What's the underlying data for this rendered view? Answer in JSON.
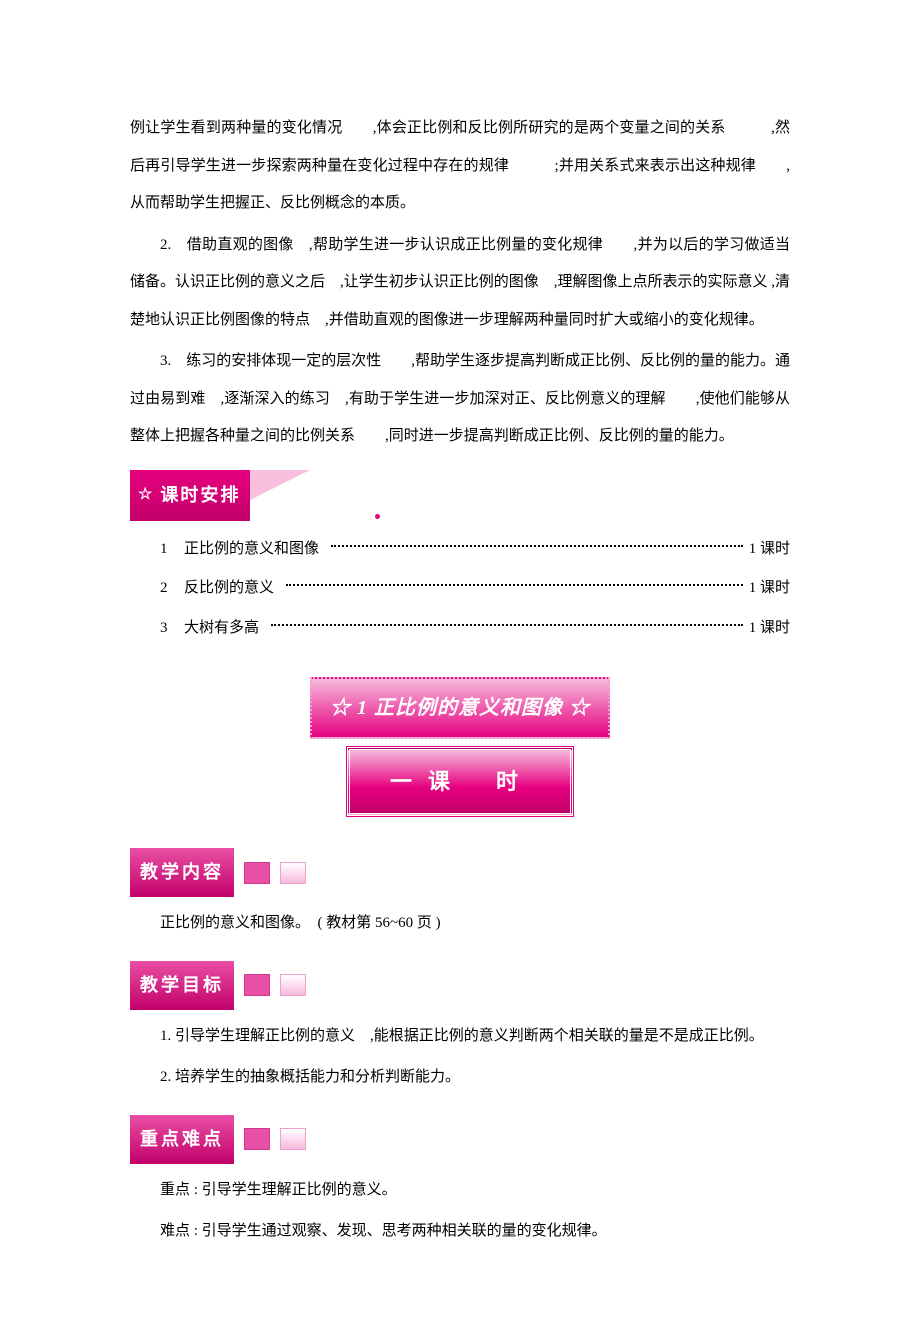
{
  "colors": {
    "magenta": "#e6007e",
    "magenta_dark": "#c2006b",
    "pink_light": "#f7b9dd",
    "pink_border": "#f59ecf",
    "text": "#000000",
    "bg": "#ffffff"
  },
  "typography": {
    "body_family": "SimSun",
    "body_size_pt": 11,
    "header_family": "SimHei",
    "kaiti_family": "KaiTi",
    "line_height": 2.5
  },
  "paragraphs": {
    "p1": "例让学生看到两种量的变化情况　　,体会正比例和反比例所研究的是两个变量之间的关系　　　,然后再引导学生进一步探索两种量在变化过程中存在的规律　　　;并用关系式来表示出这种规律　　,从而帮助学生把握正、反比例概念的本质。",
    "p2": "2.　借助直观的图像　,帮助学生进一步认识成正比例量的变化规律　　,并为以后的学习做适当储备。认识正比例的意义之后　,让学生初步认识正比例的图像　,理解图像上点所表示的实际意义 ,清楚地认识正比例图像的特点　,并借助直观的图像进一步理解两种量同时扩大或缩小的变化规律。",
    "p3": "3.　练习的安排体现一定的层次性　　,帮助学生逐步提高判断成正比例、反比例的量的能力。通过由易到难　,逐渐深入的练习　,有助于学生进一步加深对正、反比例意义的理解　　,使他们能够从整体上把握各种量之间的比例关系　　,同时进一步提高判断成正比例、反比例的量的能力。"
  },
  "schedule_header": {
    "star": "☆",
    "label": "课时安排"
  },
  "toc": [
    {
      "num": "1",
      "title": "正比例的意义和图像",
      "hours": "1 课时"
    },
    {
      "num": "2",
      "title": "反比例的意义",
      "hours": "1 课时"
    },
    {
      "num": "3",
      "title": "大树有多高",
      "hours": "1 课时"
    }
  ],
  "chapter_banner": {
    "prefix": "☆",
    "num": "1",
    "title": "正比例的意义和图像",
    "suffix": "☆"
  },
  "lesson_banner": {
    "dash": "一",
    "label": "课　时"
  },
  "sections": {
    "content": {
      "label": "教学内容",
      "body": "正比例的意义和图像。　( 教材第 56~60 页 )"
    },
    "goals": {
      "label": "教学目标",
      "items": [
        "1. 引导学生理解正比例的意义　,能根据正比例的意义判断两个相关联的量是不是成正比例。",
        "2. 培养学生的抽象概括能力和分析判断能力。"
      ]
    },
    "keypoints": {
      "label": "重点难点",
      "items": [
        "重点 : 引导学生理解正比例的意义。",
        "难点 : 引导学生通过观察、发现、思考两种相关联的量的变化规律。"
      ]
    }
  }
}
